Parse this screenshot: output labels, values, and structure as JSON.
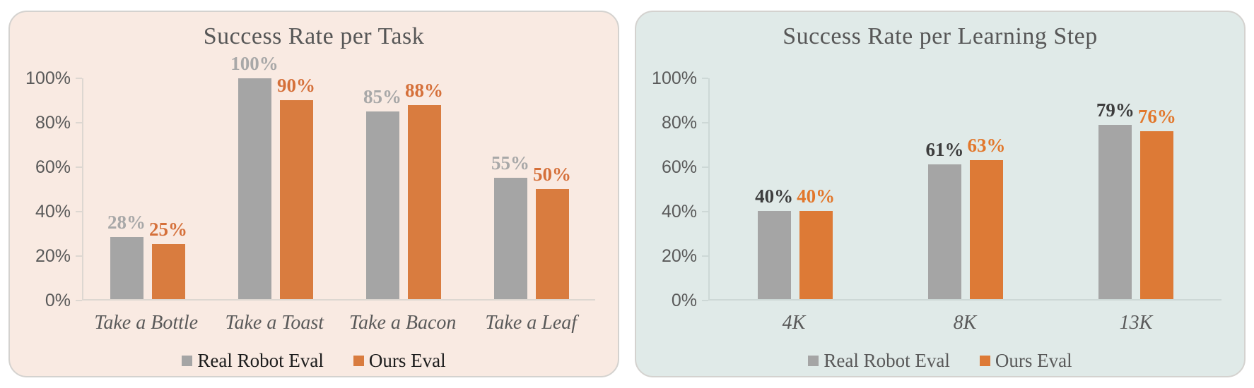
{
  "chart_data": [
    {
      "type": "bar",
      "title": "Success Rate per Task",
      "categories": [
        "Take a Bottle",
        "Take a Toast",
        "Take a Bacon",
        "Take a Leaf"
      ],
      "series": [
        {
          "name": "Real Robot Eval",
          "values": [
            28,
            100,
            85,
            55
          ],
          "labels": [
            "28%",
            "100%",
            "85%",
            "55%"
          ],
          "color": "#A5A5A5",
          "label_color": "#A8A8A8"
        },
        {
          "name": "Ours Eval",
          "values": [
            25,
            90,
            88,
            50
          ],
          "labels": [
            "25%",
            "90%",
            "88%",
            "50%"
          ],
          "color": "#D97C3F",
          "label_color": "#D5703A"
        }
      ],
      "y_ticks": [
        {
          "value": 0,
          "label": "0%"
        },
        {
          "value": 20,
          "label": "20%"
        },
        {
          "value": 40,
          "label": "40%"
        },
        {
          "value": 60,
          "label": "60%"
        },
        {
          "value": 80,
          "label": "80%"
        },
        {
          "value": 100,
          "label": "100%"
        }
      ],
      "ylim": [
        0,
        100
      ],
      "grid": false,
      "legend_position": "bottom",
      "card_background": "#F9EAE2",
      "title_color": "#575757",
      "axis_color": "#DDD7D1",
      "tick_label_color": "#595959",
      "category_label_color": "#595959",
      "legend_text_color": "#1C1C1C"
    },
    {
      "type": "bar",
      "title": "Success Rate per Learning Step",
      "categories": [
        "4K",
        "8K",
        "13K"
      ],
      "series": [
        {
          "name": "Real Robot Eval",
          "values": [
            40,
            61,
            79
          ],
          "labels": [
            "40%",
            "61%",
            "79%"
          ],
          "color": "#A5A5A5",
          "label_color": "#3D3D3D"
        },
        {
          "name": "Ours Eval",
          "values": [
            40,
            63,
            76
          ],
          "labels": [
            "40%",
            "63%",
            "76%"
          ],
          "color": "#DD7A36",
          "label_color": "#E2772B"
        }
      ],
      "y_ticks": [
        {
          "value": 0,
          "label": "0%"
        },
        {
          "value": 20,
          "label": "20%"
        },
        {
          "value": 40,
          "label": "40%"
        },
        {
          "value": 60,
          "label": "60%"
        },
        {
          "value": 80,
          "label": "80%"
        },
        {
          "value": 100,
          "label": "100%"
        }
      ],
      "ylim": [
        0,
        100
      ],
      "grid": false,
      "legend_position": "bottom",
      "card_background": "#E0EAE8",
      "title_color": "#575757",
      "axis_color": "#CDD8D6",
      "tick_label_color": "#595959",
      "category_label_color": "#595959",
      "legend_text_color": "#595959"
    }
  ]
}
